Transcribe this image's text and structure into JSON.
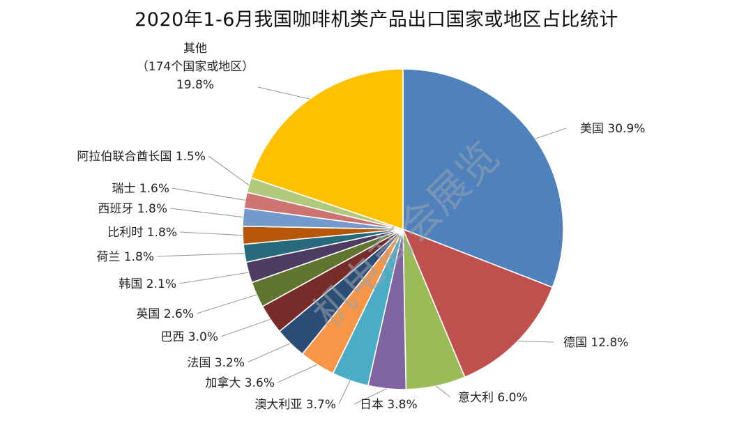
{
  "chart_data": {
    "type": "pie",
    "title": "2020年1-6月我国咖啡机类产品出口国家或地区占比统计",
    "slices": [
      {
        "label": "美国",
        "value": 30.9,
        "display": "美国 30.9%",
        "color": "#4f81bd"
      },
      {
        "label": "德国",
        "value": 12.8,
        "display": "德国 12.8%",
        "color": "#c0504d"
      },
      {
        "label": "意大利",
        "value": 6.0,
        "display": "意大利 6.0%",
        "color": "#9bbb59"
      },
      {
        "label": "日本",
        "value": 3.8,
        "display": "日本 3.8%",
        "color": "#8064a2"
      },
      {
        "label": "澳大利亚",
        "value": 3.7,
        "display": "澳大利亚 3.7%",
        "color": "#4bacc6"
      },
      {
        "label": "加拿大",
        "value": 3.6,
        "display": "加拿大 3.6%",
        "color": "#f79646"
      },
      {
        "label": "法国",
        "value": 3.2,
        "display": "法国 3.2%",
        "color": "#2c4d75"
      },
      {
        "label": "巴西",
        "value": 3.0,
        "display": "巴西 3.0%",
        "color": "#772c2a"
      },
      {
        "label": "英国",
        "value": 2.6,
        "display": "英国 2.6%",
        "color": "#5f7530"
      },
      {
        "label": "韩国",
        "value": 2.1,
        "display": "韩国 2.1%",
        "color": "#4d3b62"
      },
      {
        "label": "荷兰",
        "value": 1.8,
        "display": "荷兰 1.8%",
        "color": "#276a7c"
      },
      {
        "label": "比利时",
        "value": 1.8,
        "display": "比利时 1.8%",
        "color": "#b65708"
      },
      {
        "label": "西班牙",
        "value": 1.8,
        "display": "西班牙 1.8%",
        "color": "#729aca"
      },
      {
        "label": "瑞士",
        "value": 1.6,
        "display": "瑞士 1.6%",
        "color": "#cd7371"
      },
      {
        "label": "阿拉伯联合酋长国",
        "value": 1.5,
        "display": "阿拉伯联合酋长国 1.5%",
        "color": "#b0c97d"
      },
      {
        "label": "其他",
        "value": 19.8,
        "display_lines": [
          "其他",
          "（174个国家或地区）",
          "19.8%"
        ],
        "color": "#ffc000"
      }
    ],
    "legend": "none",
    "data_labels": "outside with leader lines"
  },
  "watermark": "机电商会展览"
}
